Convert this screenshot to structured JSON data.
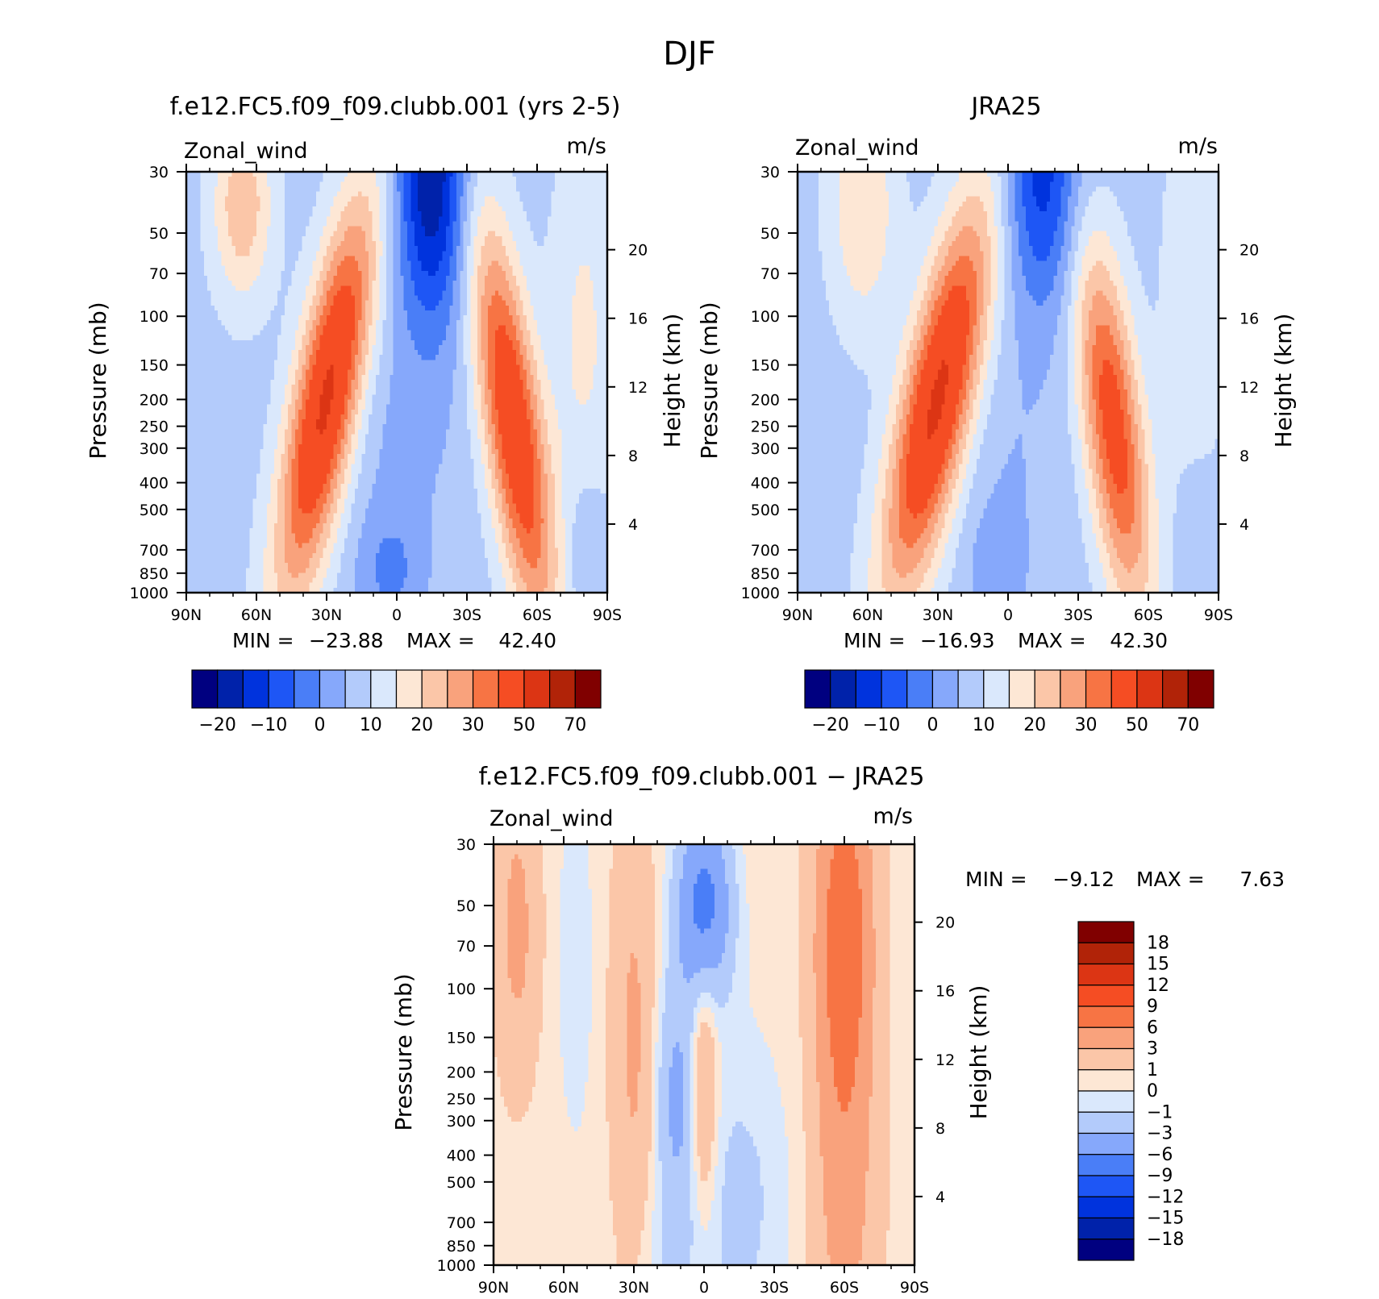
{
  "figure": {
    "title": "DJF"
  },
  "chart_data": [
    {
      "type": "contour",
      "title": "f.e12.FC5.f09_f09.clubb.001 (yrs 2-5)",
      "variable": "Zonal_wind",
      "units": "m/s",
      "xlabel": "",
      "ylabel": "Pressure (mb)",
      "ylabel_right": "Height (km)",
      "x_ticks": [
        "90N",
        "60N",
        "30N",
        "0",
        "30S",
        "60S",
        "90S"
      ],
      "y_ticks": [
        "30",
        "50",
        "70",
        "100",
        "150",
        "200",
        "250",
        "300",
        "400",
        "500",
        "700",
        "850",
        "1000"
      ],
      "y_ticks_right": [
        "20",
        "16",
        "12",
        "8",
        "4"
      ],
      "log_pressure_axis": true,
      "min_label": "MIN = ",
      "min_value": "−23.88",
      "max_label": "MAX = ",
      "max_value": "42.40",
      "colorbar": {
        "orientation": "horizontal",
        "labels": [
          "−20",
          "−10",
          "0",
          "10",
          "20",
          "30",
          "50",
          "70"
        ],
        "colors": [
          "#000080",
          "#0022aa",
          "#0033dd",
          "#1e56f5",
          "#4a7ef7",
          "#86a8fb",
          "#b3cbfb",
          "#dae8fc",
          "#fde7d5",
          "#fbc6a8",
          "#f9a27c",
          "#f77444",
          "#f54d23",
          "#dc3514",
          "#b12308",
          "#800000"
        ]
      },
      "features": {
        "nh_jet_max_ms": 42,
        "nh_jet_lat": "30N",
        "nh_jet_pressure_mb": 200,
        "sh_jet_max_ms": 38,
        "sh_jet_lat": "50S",
        "sh_jet_pressure_mb": 250,
        "tropical_easterly_min_ms": -24,
        "tropical_easterly_lat": "15S",
        "tropical_easterly_pressure_mb": 30
      }
    },
    {
      "type": "contour",
      "title": "JRA25",
      "variable": "Zonal_wind",
      "units": "m/s",
      "xlabel": "",
      "ylabel": "Pressure (mb)",
      "ylabel_right": "Height (km)",
      "x_ticks": [
        "90N",
        "60N",
        "30N",
        "0",
        "30S",
        "60S",
        "90S"
      ],
      "y_ticks": [
        "30",
        "50",
        "70",
        "100",
        "150",
        "200",
        "250",
        "300",
        "400",
        "500",
        "700",
        "850",
        "1000"
      ],
      "y_ticks_right": [
        "20",
        "16",
        "12",
        "8",
        "4"
      ],
      "log_pressure_axis": true,
      "min_label": "MIN = ",
      "min_value": "−16.93",
      "max_label": "MAX = ",
      "max_value": "42.30",
      "colorbar": {
        "orientation": "horizontal",
        "labels": [
          "−20",
          "−10",
          "0",
          "10",
          "20",
          "30",
          "50",
          "70"
        ],
        "colors": [
          "#000080",
          "#0022aa",
          "#0033dd",
          "#1e56f5",
          "#4a7ef7",
          "#86a8fb",
          "#b3cbfb",
          "#dae8fc",
          "#fde7d5",
          "#fbc6a8",
          "#f9a27c",
          "#f77444",
          "#f54d23",
          "#dc3514",
          "#b12308",
          "#800000"
        ]
      },
      "features": {
        "nh_jet_max_ms": 42,
        "nh_jet_lat": "30N",
        "nh_jet_pressure_mb": 200,
        "sh_jet_max_ms": 34,
        "sh_jet_lat": "45S",
        "sh_jet_pressure_mb": 250,
        "tropical_easterly_min_ms": -17,
        "tropical_easterly_lat": "15S",
        "tropical_easterly_pressure_mb": 30
      }
    },
    {
      "type": "contour",
      "title": "f.e12.FC5.f09_f09.clubb.001 − JRA25",
      "variable": "Zonal_wind",
      "units": "m/s",
      "xlabel": "",
      "ylabel": "Pressure (mb)",
      "ylabel_right": "Height (km)",
      "x_ticks": [
        "90N",
        "60N",
        "30N",
        "0",
        "30S",
        "60S",
        "90S"
      ],
      "y_ticks": [
        "30",
        "50",
        "70",
        "100",
        "150",
        "200",
        "250",
        "300",
        "400",
        "500",
        "700",
        "850",
        "1000"
      ],
      "y_ticks_right": [
        "20",
        "16",
        "12",
        "8",
        "4"
      ],
      "log_pressure_axis": true,
      "min_label": "MIN = ",
      "min_value": "−9.12",
      "max_label": "MAX = ",
      "max_value": "7.63",
      "colorbar": {
        "orientation": "vertical",
        "labels": [
          "18",
          "15",
          "12",
          "9",
          "6",
          "3",
          "1",
          "0",
          "−1",
          "−3",
          "−6",
          "−9",
          "−12",
          "−15",
          "−18"
        ],
        "colors": [
          "#800000",
          "#b12308",
          "#dc3514",
          "#f54d23",
          "#f77444",
          "#f9a27c",
          "#fbc6a8",
          "#fde7d5",
          "#dae8fc",
          "#b3cbfb",
          "#86a8fb",
          "#4a7ef7",
          "#1e56f5",
          "#0033dd",
          "#0022aa",
          "#000080"
        ]
      },
      "features": {
        "sh_positive_max_ms": 7.6,
        "sh_positive_lat": "60S",
        "negative_min_ms": -9,
        "negative_min_lat": "0",
        "negative_min_pressure_mb": 50
      }
    }
  ]
}
